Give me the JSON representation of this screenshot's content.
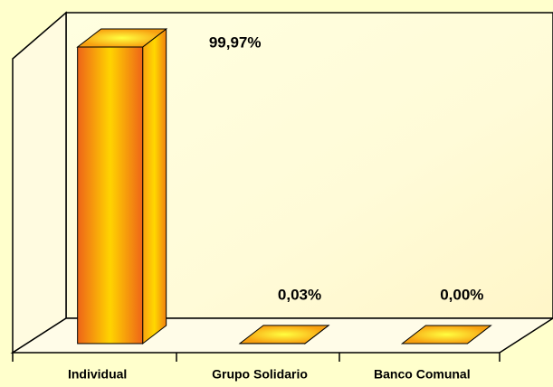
{
  "chart_data": {
    "type": "bar3d",
    "categories": [
      "Individual",
      "Grupo Solidario",
      "Banco Comunal"
    ],
    "values": [
      99.97,
      0.03,
      0.0
    ],
    "value_labels": [
      "99,97%",
      "0,03%",
      "0,00%"
    ],
    "color": "#f07020",
    "ylim": [
      0,
      100
    ]
  }
}
